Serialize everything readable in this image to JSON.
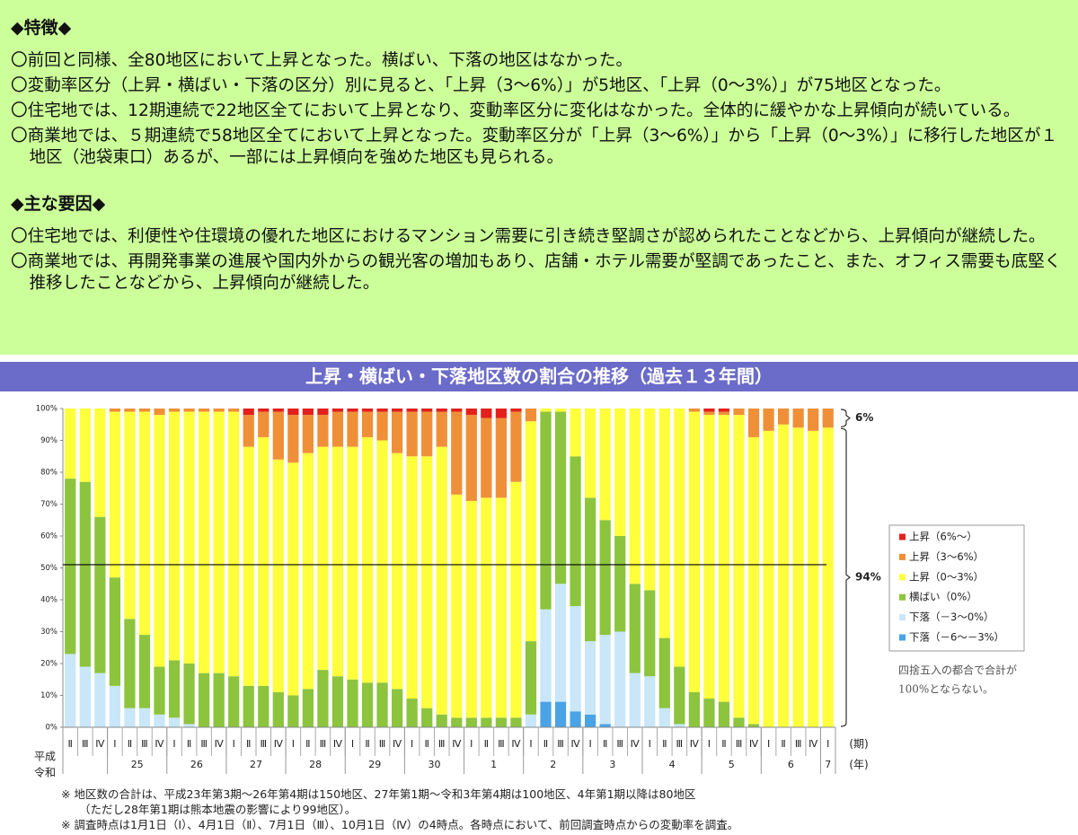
{
  "sections": [
    {
      "heading": "◆特徴◆",
      "items": [
        "〇前回と同様、全80地区において上昇となった。横ばい、下落の地区はなかった。",
        "〇変動率区分（上昇・横ばい・下落の区分）別に見ると、「上昇（3～6%）」が5地区、「上昇（0～3%）」が75地区となった。",
        "〇住宅地では、12期連続で22地区全てにおいて上昇となり、変動率区分に変化はなかった。全体的に緩やかな上昇傾向が続いている。",
        "〇商業地では、５期連続で58地区全てにおいて上昇となった。変動率区分が「上昇（3～6%）」から「上昇（0～3%）」に移行した地区が１地区（池袋東口）あるが、一部には上昇傾向を強めた地区も見られる。"
      ]
    },
    {
      "heading": "◆主な要因◆",
      "items": [
        "〇住宅地では、利便性や住環境の優れた地区におけるマンション需要に引き続き堅調さが認められたことなどから、上昇傾向が継続した。",
        "〇商業地では、再開発事業の進展や国内外からの観光客の増加もあり、店舗・ホテル需要が堅調であったこと、また、オフィス需要も底堅く推移したことなどから、上昇傾向が継続した。"
      ]
    }
  ],
  "chart_data": {
    "type": "stacked_bar",
    "title": "上昇・横ばい・下落地区数の割合の推移（過去１３年間）",
    "groups": [
      {
        "label": null,
        "categories": [
          "Ⅱ",
          "Ⅲ",
          "Ⅳ"
        ]
      },
      {
        "label": "25",
        "categories": [
          "Ⅰ",
          "Ⅱ",
          "Ⅲ",
          "Ⅳ"
        ]
      },
      {
        "label": "26",
        "categories": [
          "Ⅰ",
          "Ⅱ",
          "Ⅲ",
          "Ⅳ"
        ]
      },
      {
        "label": "27",
        "categories": [
          "Ⅰ",
          "Ⅱ",
          "Ⅲ",
          "Ⅳ"
        ]
      },
      {
        "label": "28",
        "categories": [
          "Ⅰ",
          "Ⅱ",
          "Ⅲ",
          "Ⅳ"
        ]
      },
      {
        "label": "29",
        "categories": [
          "Ⅰ",
          "Ⅱ",
          "Ⅲ",
          "Ⅳ"
        ]
      },
      {
        "label": "30",
        "categories": [
          "Ⅰ",
          "Ⅱ",
          "Ⅲ",
          "Ⅳ"
        ]
      },
      {
        "label": "1",
        "categories": [
          "Ⅰ",
          "Ⅱ",
          "Ⅲ",
          "Ⅳ"
        ]
      },
      {
        "label": "2",
        "categories": [
          "Ⅰ",
          "Ⅱ",
          "Ⅲ",
          "Ⅳ"
        ]
      },
      {
        "label": "3",
        "categories": [
          "Ⅰ",
          "Ⅱ",
          "Ⅲ",
          "Ⅳ"
        ]
      },
      {
        "label": "4",
        "categories": [
          "Ⅰ",
          "Ⅱ",
          "Ⅲ",
          "Ⅳ"
        ]
      },
      {
        "label": "5",
        "categories": [
          "Ⅰ",
          "Ⅱ",
          "Ⅲ",
          "Ⅳ"
        ]
      },
      {
        "label": "6",
        "categories": [
          "Ⅰ",
          "Ⅱ",
          "Ⅲ",
          "Ⅳ"
        ]
      },
      {
        "label": "7",
        "categories": [
          "Ⅰ"
        ]
      }
    ],
    "era_labels": [
      "平成",
      "令和"
    ],
    "x_unit_labels": [
      "(期)",
      "(年)"
    ],
    "series": [
      {
        "name": "下落（－6～－3%）",
        "color": "#4aa3e6",
        "values": [
          0,
          0,
          0,
          0,
          0,
          0,
          0,
          0,
          0,
          0,
          0,
          0,
          0,
          0,
          0,
          0,
          0,
          0,
          0,
          0,
          0,
          0,
          0,
          0,
          0,
          0,
          0,
          0,
          0,
          0,
          0,
          0,
          8,
          8,
          5,
          4,
          1,
          0,
          0,
          0,
          0,
          0,
          0,
          0,
          0,
          0,
          0,
          0,
          0,
          0,
          0,
          0
        ]
      },
      {
        "name": "下落（－3～0%）",
        "color": "#c9e7f8",
        "values": [
          23,
          19,
          17,
          13,
          6,
          6,
          4,
          3,
          1,
          0,
          0,
          0,
          0,
          0,
          0,
          0,
          0,
          0,
          0,
          0,
          0,
          0,
          0,
          0,
          0,
          0,
          0,
          0,
          0,
          0,
          0,
          4,
          29,
          37,
          33,
          23,
          28,
          30,
          17,
          16,
          6,
          1,
          0,
          0,
          0,
          0,
          0,
          0,
          0,
          0,
          0,
          0
        ]
      },
      {
        "name": "横ばい（0%）",
        "color": "#8cc43e",
        "values": [
          55,
          58,
          49,
          34,
          28,
          23,
          15,
          18,
          19,
          17,
          17,
          16,
          13,
          13,
          11,
          10,
          12,
          18,
          16,
          15,
          14,
          14,
          12,
          9,
          6,
          4,
          3,
          3,
          3,
          3,
          3,
          23,
          62,
          54,
          47,
          45,
          36,
          30,
          28,
          27,
          22,
          18,
          11,
          9,
          8,
          3,
          1,
          0,
          0,
          0,
          0,
          0
        ]
      },
      {
        "name": "上昇（0～3%）",
        "color": "#ffff3c",
        "values": [
          22,
          23,
          34,
          52,
          65,
          70,
          79,
          78,
          79,
          82,
          82,
          83,
          75,
          78,
          73,
          73,
          74,
          70,
          72,
          73,
          77,
          76,
          74,
          76,
          79,
          84,
          70,
          68,
          69,
          69,
          74,
          69,
          1,
          1,
          15,
          28,
          35,
          40,
          55,
          57,
          72,
          81,
          88,
          89,
          90,
          95,
          90,
          93,
          95,
          94,
          93,
          94
        ]
      },
      {
        "name": "上昇（3～6%）",
        "color": "#ef9038",
        "values": [
          0,
          0,
          0,
          1,
          1,
          1,
          2,
          1,
          1,
          1,
          1,
          1,
          10,
          8,
          15,
          15,
          12,
          10,
          11,
          11,
          8,
          9,
          13,
          14,
          14,
          11,
          26,
          27,
          25,
          25,
          22,
          4,
          0,
          0,
          0,
          0,
          0,
          0,
          0,
          0,
          0,
          0,
          1,
          1,
          1,
          2,
          9,
          7,
          5,
          6,
          7,
          6
        ]
      },
      {
        "name": "上昇（6%～）",
        "color": "#e3201b",
        "values": [
          0,
          0,
          0,
          0,
          0,
          0,
          0,
          0,
          0,
          0,
          0,
          0,
          2,
          1,
          1,
          2,
          2,
          2,
          1,
          1,
          1,
          1,
          1,
          1,
          1,
          1,
          1,
          2,
          3,
          3,
          1,
          0,
          0,
          0,
          0,
          0,
          0,
          0,
          0,
          0,
          0,
          0,
          0,
          1,
          1,
          0,
          0,
          0,
          0,
          0,
          0,
          0
        ]
      }
    ],
    "ylim": [
      0,
      100
    ],
    "yticks": [
      {
        "value": 0,
        "label": "0%"
      },
      {
        "value": 10,
        "label": "10%"
      },
      {
        "value": 20,
        "label": "20%"
      },
      {
        "value": 30,
        "label": "30%"
      },
      {
        "value": 40,
        "label": "40%"
      },
      {
        "value": 50,
        "label": "50%"
      },
      {
        "value": 60,
        "label": "60%"
      },
      {
        "value": 70,
        "label": "70%"
      },
      {
        "value": 80,
        "label": "80%"
      },
      {
        "value": 90,
        "label": "90%"
      },
      {
        "value": 100,
        "label": "100%"
      }
    ],
    "reference_line": 51,
    "brackets": [
      {
        "label": "6%",
        "from": 94,
        "to": 100
      },
      {
        "label": "94%",
        "from": 0,
        "to": 94
      }
    ],
    "note": [
      "四捨五入の都合で合計が",
      "100%とならない。"
    ],
    "footnotes": [
      "※ 地区数の合計は、平成23年第3期～26年第4期は150地区、27年第1期～令和3年第4期は100地区、4年第1期以降は80地区",
      "（ただし28年第1期は熊本地震の影響により99地区）。",
      "※ 調査時点は1月1日（Ⅰ）、4月1日（Ⅱ）、7月1日（Ⅲ）、10月1日（Ⅳ）の4時点。各時点において、前回調査時点からの変動率を調査。"
    ]
  }
}
